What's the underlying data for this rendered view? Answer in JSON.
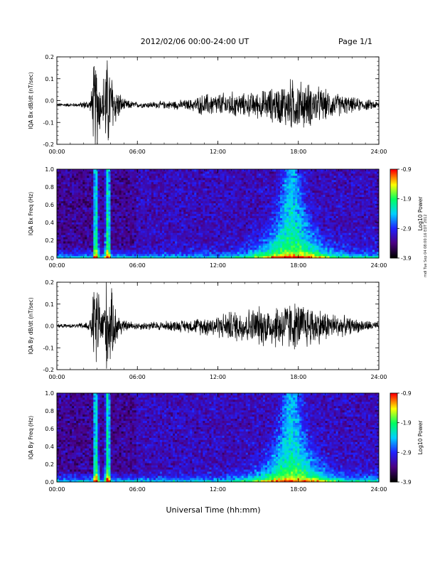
{
  "header": {
    "title": "2012/02/06  00:00-24:00 UT",
    "page": "Page 1/1"
  },
  "x_title": "Universal Time (hh:mm)",
  "side_note": "mdl Tue Sep 04 08:00:16 EDT 2012",
  "colors": {
    "trace": "#000000",
    "colormap": [
      "#000000",
      "#4b0082",
      "#2020ff",
      "#00d0ff",
      "#00ff60",
      "#ffff00",
      "#ff0000"
    ]
  },
  "chart_data": [
    {
      "type": "line",
      "ylabel": "IQA Bx dB/dt (nT/sec)",
      "xlim": [
        0,
        24
      ],
      "ylim": [
        -0.2,
        0.2
      ],
      "xticks": [
        "00:00",
        "06:00",
        "12:00",
        "18:00",
        "24:00"
      ],
      "yticks": [
        "-0.2",
        "-0.1",
        "0.0",
        "0.1",
        "0.2"
      ],
      "baseline": -0.02,
      "envelope": {
        "x": [
          0,
          1.5,
          2.5,
          2.8,
          3.1,
          3.3,
          3.6,
          3.8,
          4.4,
          5,
          6,
          8,
          10,
          11,
          12,
          13,
          14,
          15,
          16,
          16.5,
          17,
          17.5,
          18,
          18.5,
          19,
          20,
          21,
          22,
          23,
          24
        ],
        "amp": [
          0.01,
          0.01,
          0.03,
          0.25,
          0.25,
          0.06,
          0.25,
          0.25,
          0.1,
          0.03,
          0.015,
          0.02,
          0.03,
          0.06,
          0.06,
          0.07,
          0.06,
          0.07,
          0.09,
          0.1,
          0.12,
          0.14,
          0.13,
          0.12,
          0.11,
          0.08,
          0.06,
          0.04,
          0.03,
          0.02
        ]
      }
    },
    {
      "type": "heatmap",
      "ylabel": "IQA Bx Freq (Hz)",
      "xlim": [
        0,
        24
      ],
      "ylim": [
        0,
        1.0
      ],
      "xticks": [
        "00:00",
        "06:00",
        "12:00",
        "18:00",
        "24:00"
      ],
      "yticks": [
        "0.0",
        "0.2",
        "0.4",
        "0.6",
        "0.8",
        "1.0"
      ],
      "colorbar": {
        "label": "Log10 Power",
        "ticks": [
          "-0.9",
          "-1.9",
          "-2.9",
          "-3.9"
        ],
        "range": [
          -3.9,
          -0.9
        ]
      },
      "features": {
        "spikes": [
          2.9,
          3.8
        ],
        "storm_center": 17.5
      }
    },
    {
      "type": "line",
      "ylabel": "IQA By dB/dt (nT/sec)",
      "xlim": [
        0,
        24
      ],
      "ylim": [
        -0.2,
        0.2
      ],
      "xticks": [
        "00:00",
        "06:00",
        "12:00",
        "18:00",
        "24:00"
      ],
      "yticks": [
        "-0.2",
        "-0.1",
        "0.0",
        "0.1",
        "0.2"
      ],
      "baseline": 0.0,
      "envelope": {
        "x": [
          0,
          1.5,
          2.5,
          2.8,
          3.1,
          3.3,
          3.6,
          3.8,
          4.4,
          5,
          6,
          8,
          10,
          11,
          12,
          13,
          14,
          15,
          16,
          16.5,
          17,
          17.5,
          18,
          18.5,
          19,
          20,
          21,
          22,
          23,
          24
        ],
        "amp": [
          0.01,
          0.01,
          0.03,
          0.25,
          0.25,
          0.07,
          0.25,
          0.25,
          0.1,
          0.03,
          0.02,
          0.025,
          0.035,
          0.05,
          0.06,
          0.08,
          0.09,
          0.1,
          0.11,
          0.12,
          0.13,
          0.13,
          0.12,
          0.12,
          0.11,
          0.08,
          0.06,
          0.04,
          0.03,
          0.02
        ]
      }
    },
    {
      "type": "heatmap",
      "ylabel": "IQA By Freq (Hz)",
      "xlim": [
        0,
        24
      ],
      "ylim": [
        0,
        1.0
      ],
      "xticks": [
        "00:00",
        "06:00",
        "12:00",
        "18:00",
        "24:00"
      ],
      "yticks": [
        "0.0",
        "0.2",
        "0.4",
        "0.6",
        "0.8",
        "1.0"
      ],
      "colorbar": {
        "label": "Log10 Power",
        "ticks": [
          "-0.9",
          "-1.9",
          "-2.9",
          "-3.9"
        ],
        "range": [
          -3.9,
          -0.9
        ]
      },
      "features": {
        "spikes": [
          2.9,
          3.8
        ],
        "storm_center": 17.5
      }
    }
  ]
}
